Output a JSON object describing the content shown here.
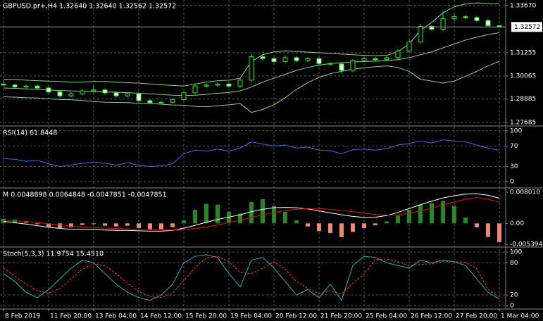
{
  "chart_data": [
    {
      "type": "candlestick",
      "title": "GBPUSD.pr+,H4  1.32640 1.32640 1.32562 1.32572",
      "categories": [
        "8 Feb 2019",
        null,
        null,
        null,
        "11 Feb 20:00",
        null,
        null,
        null,
        "13 Feb 04:00",
        null,
        null,
        null,
        "14 Feb 12:00",
        null,
        null,
        null,
        "15 Feb 20:00",
        null,
        null,
        null,
        "19 Feb 04:00",
        null,
        null,
        null,
        "20 Feb 12:00",
        null,
        null,
        null,
        "21 Feb 20:00",
        null,
        null,
        null,
        "25 Feb 04:00",
        null,
        null,
        null,
        "26 Feb 12:00",
        null,
        null,
        null,
        "27 Feb 20:00",
        null,
        null,
        null,
        "1 Mar 04:00"
      ],
      "open": [
        1.2965,
        1.296,
        1.295,
        1.2955,
        1.2945,
        1.2925,
        1.2905,
        1.2915,
        1.293,
        1.2935,
        1.292,
        1.2905,
        1.2915,
        1.288,
        1.287,
        1.2872,
        1.2885,
        1.292,
        1.2955,
        1.296,
        1.2965,
        1.2955,
        1.2985,
        1.3105,
        1.3095,
        1.308,
        1.31,
        1.3085,
        1.3095,
        1.307,
        1.3068,
        1.3035,
        1.3085,
        1.3095,
        1.309,
        1.31,
        1.3135,
        1.318,
        1.326,
        1.3245,
        1.33,
        1.331,
        1.3305,
        1.329,
        1.3264
      ],
      "high": [
        1.2975,
        1.2968,
        1.2963,
        1.2962,
        1.2953,
        1.2933,
        1.2923,
        1.294,
        1.296,
        1.2943,
        1.2928,
        1.2923,
        1.2923,
        1.2888,
        1.288,
        1.2893,
        1.2928,
        1.2963,
        1.2968,
        1.2973,
        1.2973,
        1.2993,
        1.3118,
        1.3113,
        1.3103,
        1.3112,
        1.3108,
        1.3103,
        1.3103,
        1.3078,
        1.3076,
        1.3093,
        1.3103,
        1.3103,
        1.3108,
        1.3143,
        1.3188,
        1.3272,
        1.3268,
        1.334,
        1.3325,
        1.3318,
        1.3313,
        1.3298,
        1.3264
      ],
      "low": [
        1.2952,
        1.2942,
        1.2944,
        1.2937,
        1.2917,
        1.2897,
        1.2898,
        1.2907,
        1.2922,
        1.2912,
        1.2897,
        1.2897,
        1.2872,
        1.2862,
        1.2862,
        1.2864,
        1.2877,
        1.2912,
        1.2947,
        1.2952,
        1.2947,
        1.2947,
        1.2977,
        1.3087,
        1.3072,
        1.3072,
        1.3077,
        1.3077,
        1.3062,
        1.306,
        1.302,
        1.3027,
        1.3077,
        1.3082,
        1.3082,
        1.3092,
        1.3127,
        1.3172,
        1.3237,
        1.3237,
        1.3292,
        1.3297,
        1.3282,
        1.3257,
        1.32562
      ],
      "close": [
        1.296,
        1.295,
        1.2955,
        1.2945,
        1.2925,
        1.2905,
        1.2915,
        1.293,
        1.2935,
        1.292,
        1.2905,
        1.2915,
        1.288,
        1.287,
        1.2872,
        1.2885,
        1.292,
        1.2955,
        1.296,
        1.2965,
        1.2955,
        1.2985,
        1.3105,
        1.3095,
        1.308,
        1.31,
        1.3085,
        1.3095,
        1.307,
        1.3068,
        1.3035,
        1.3085,
        1.3095,
        1.309,
        1.31,
        1.3135,
        1.318,
        1.326,
        1.3245,
        1.33,
        1.331,
        1.3305,
        1.329,
        1.3264,
        1.32572
      ],
      "color": "#00ff00",
      "up_fill": "#000000",
      "down_fill": "#ffffff",
      "upper": [
        1.299,
        1.2988,
        1.2985,
        1.2982,
        1.298,
        1.2978,
        1.2975,
        1.2975,
        1.2978,
        1.2978,
        1.2975,
        1.2972,
        1.297,
        1.2965,
        1.2962,
        1.2958,
        1.2955,
        1.2965,
        1.2975,
        1.2982,
        1.2985,
        1.2995,
        1.308,
        1.3115,
        1.313,
        1.3135,
        1.3132,
        1.3128,
        1.3125,
        1.3122,
        1.3118,
        1.3115,
        1.3112,
        1.311,
        1.3112,
        1.313,
        1.317,
        1.324,
        1.328,
        1.333,
        1.336,
        1.3375,
        1.338,
        1.3378,
        1.3375
      ],
      "middle": [
        1.2945,
        1.2943,
        1.294,
        1.2938,
        1.2935,
        1.2932,
        1.293,
        1.2928,
        1.2927,
        1.2925,
        1.2923,
        1.2921,
        1.2918,
        1.2915,
        1.2912,
        1.2908,
        1.2906,
        1.2908,
        1.2912,
        1.2918,
        1.2922,
        1.293,
        1.295,
        1.2975,
        1.2995,
        1.3015,
        1.3035,
        1.305,
        1.3062,
        1.307,
        1.3074,
        1.3078,
        1.308,
        1.3082,
        1.3085,
        1.309,
        1.31,
        1.3115,
        1.313,
        1.315,
        1.317,
        1.319,
        1.3205,
        1.3218,
        1.3228
      ],
      "lower": [
        1.29,
        1.2898,
        1.2895,
        1.2894,
        1.289,
        1.2886,
        1.2885,
        1.2881,
        1.2876,
        1.2872,
        1.2871,
        1.287,
        1.2866,
        1.2865,
        1.2862,
        1.2858,
        1.2857,
        1.2851,
        1.2849,
        1.2854,
        1.2859,
        1.2865,
        1.282,
        1.2835,
        1.286,
        1.2895,
        1.2938,
        1.2972,
        1.2999,
        1.3018,
        1.303,
        1.3041,
        1.3048,
        1.3054,
        1.3058,
        1.305,
        1.303,
        1.299,
        1.298,
        1.297,
        1.298,
        1.3005,
        1.303,
        1.3058,
        1.3081
      ],
      "band_color": "#8fcf8f",
      "ylim": [
        1.2754,
        1.3395
      ],
      "yticks": [
        1.27685,
        1.28885,
        1.30065,
        1.31255,
        {
          "value": 1.3367,
          "label": "1.33670"
        }
      ],
      "current_price": 1.32572,
      "grid": true
    },
    {
      "type": "line",
      "title": "RSI(14) 61.8448",
      "values": [
        45,
        44,
        40,
        42,
        35,
        30,
        33,
        36,
        38,
        36,
        33,
        37,
        32,
        30,
        31,
        35,
        55,
        62,
        60,
        64,
        60,
        66,
        78,
        74,
        70,
        72,
        66,
        68,
        62,
        61,
        55,
        63,
        64,
        62,
        65,
        72,
        75,
        80,
        76,
        82,
        80,
        78,
        72,
        66,
        61.8448
      ],
      "color": "#4169e1",
      "ylim": [
        -11,
        108
      ],
      "yticks": [
        0,
        30,
        70,
        100
      ],
      "grid": true
    },
    {
      "type": "macd",
      "title": "M 0.0048898 0.0064848 -0.0047851 -0.0047851",
      "histogram": [
        0.0012,
        0.001,
        0.0006,
        -0.0002,
        -0.0009,
        -0.0012,
        -0.001,
        -0.0004,
        -0.0002,
        -0.0006,
        -0.0008,
        -0.0006,
        -0.0012,
        -0.0016,
        -0.0015,
        -0.001,
        0.0008,
        0.0035,
        0.005,
        0.0048,
        0.003,
        0.0025,
        0.0055,
        0.0062,
        0.0045,
        0.003,
        0.0008,
        -0.0008,
        -0.002,
        -0.0025,
        -0.0035,
        -0.0022,
        -0.0012,
        -0.0005,
        0.0005,
        0.002,
        0.0035,
        0.0048,
        0.0052,
        0.0058,
        0.0045,
        0.0015,
        -0.001,
        -0.0035,
        -0.0047851
      ],
      "positive_color": "#228b22",
      "negative_color": "#f08870",
      "series": [
        {
          "color": "#ffffff",
          "values": [
            0.0005,
            0.0002,
            -0.0002,
            -0.0006,
            -0.001,
            -0.0013,
            -0.0015,
            -0.0016,
            -0.0016,
            -0.0017,
            -0.0018,
            -0.0018,
            -0.0019,
            -0.002,
            -0.002,
            -0.0018,
            -0.0012,
            -0.0005,
            0.0003,
            0.001,
            0.0016,
            0.0022,
            0.003,
            0.0036,
            0.004,
            0.0041,
            0.004,
            0.0037,
            0.0032,
            0.0027,
            0.0022,
            0.0018,
            0.0015,
            0.0016,
            0.002,
            0.0028,
            0.0038,
            0.0048,
            0.0057,
            0.0065,
            0.0071,
            0.0075,
            0.0076,
            0.0072,
            0.0064848
          ]
        },
        {
          "color": "#e01010",
          "values": [
            0.0008,
            0.0007,
            0.0005,
            0.0002,
            -0.0001,
            -0.0004,
            -0.0007,
            -0.0009,
            -0.0011,
            -0.0012,
            -0.0013,
            -0.0014,
            -0.0015,
            -0.0016,
            -0.0017,
            -0.0017,
            -0.0016,
            -0.0013,
            -0.0009,
            -0.0004,
            0.0002,
            0.0008,
            0.0015,
            0.0022,
            0.0028,
            0.0033,
            0.0036,
            0.0038,
            0.0038,
            0.0036,
            0.0033,
            0.003,
            0.0026,
            0.0023,
            0.0021,
            0.0022,
            0.0026,
            0.0032,
            0.0039,
            0.0047,
            0.0055,
            0.0062,
            0.0066,
            0.0062,
            0.0055
          ]
        }
      ],
      "ylim": [
        -0.0059,
        0.0089
      ],
      "yticks": [
        -0.005394,
        {
          "value": 0,
          "label": "0.00"
        },
        {
          "value": 0.00801,
          "label": "0.008010"
        }
      ],
      "grid": false
    },
    {
      "type": "stochastic",
      "title": "Stoch(5,3,3) 11.9754 15.4510",
      "series": [
        {
          "color": "#20b2aa",
          "dashed": false,
          "values": [
            60,
            45,
            25,
            15,
            30,
            50,
            70,
            85,
            80,
            60,
            40,
            25,
            15,
            10,
            20,
            40,
            80,
            92,
            95,
            90,
            60,
            35,
            85,
            90,
            70,
            45,
            20,
            30,
            15,
            40,
            10,
            75,
            92,
            90,
            80,
            75,
            70,
            85,
            80,
            85,
            82,
            75,
            50,
            25,
            11.9754
          ]
        },
        {
          "color": "#ff3030",
          "dashed": true,
          "values": [
            70,
            55,
            40,
            28,
            23,
            32,
            50,
            68,
            78,
            75,
            60,
            42,
            27,
            17,
            15,
            23,
            47,
            71,
            89,
            92,
            82,
            62,
            60,
            70,
            82,
            68,
            45,
            32,
            22,
            28,
            22,
            42,
            59,
            86,
            87,
            82,
            75,
            77,
            78,
            83,
            82,
            81,
            69,
            30,
            15.451
          ]
        }
      ],
      "ylim": [
        -5,
        108
      ],
      "yticks": [
        0,
        20,
        80,
        100
      ],
      "grid": true
    }
  ]
}
